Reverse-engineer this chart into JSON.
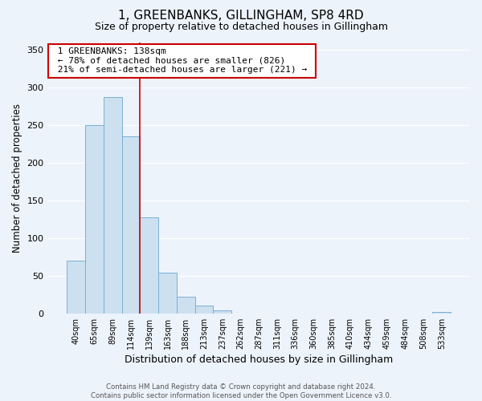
{
  "title": "1, GREENBANKS, GILLINGHAM, SP8 4RD",
  "subtitle": "Size of property relative to detached houses in Gillingham",
  "xlabel": "Distribution of detached houses by size in Gillingham",
  "ylabel": "Number of detached properties",
  "bar_labels": [
    "40sqm",
    "65sqm",
    "89sqm",
    "114sqm",
    "139sqm",
    "163sqm",
    "188sqm",
    "213sqm",
    "237sqm",
    "262sqm",
    "287sqm",
    "311sqm",
    "336sqm",
    "360sqm",
    "385sqm",
    "410sqm",
    "434sqm",
    "459sqm",
    "484sqm",
    "508sqm",
    "533sqm"
  ],
  "bar_values": [
    70,
    250,
    287,
    235,
    128,
    54,
    22,
    10,
    4,
    0,
    0,
    0,
    0,
    0,
    0,
    0,
    0,
    0,
    0,
    0,
    2
  ],
  "bar_color": "#cce0f0",
  "bar_edge_color": "#7ab0d4",
  "vline_x_index": 4,
  "vline_color": "#cc0000",
  "annotation_title": "1 GREENBANKS: 138sqm",
  "annotation_line1": "← 78% of detached houses are smaller (826)",
  "annotation_line2": "21% of semi-detached houses are larger (221) →",
  "annotation_box_facecolor": "#ffffff",
  "annotation_box_edgecolor": "#cc0000",
  "ylim": [
    0,
    360
  ],
  "yticks": [
    0,
    50,
    100,
    150,
    200,
    250,
    300,
    350
  ],
  "footer1": "Contains HM Land Registry data © Crown copyright and database right 2024.",
  "footer2": "Contains public sector information licensed under the Open Government Licence v3.0.",
  "background_color": "#edf3fb",
  "grid_color": "#ffffff",
  "title_fontsize": 11,
  "subtitle_fontsize": 9
}
